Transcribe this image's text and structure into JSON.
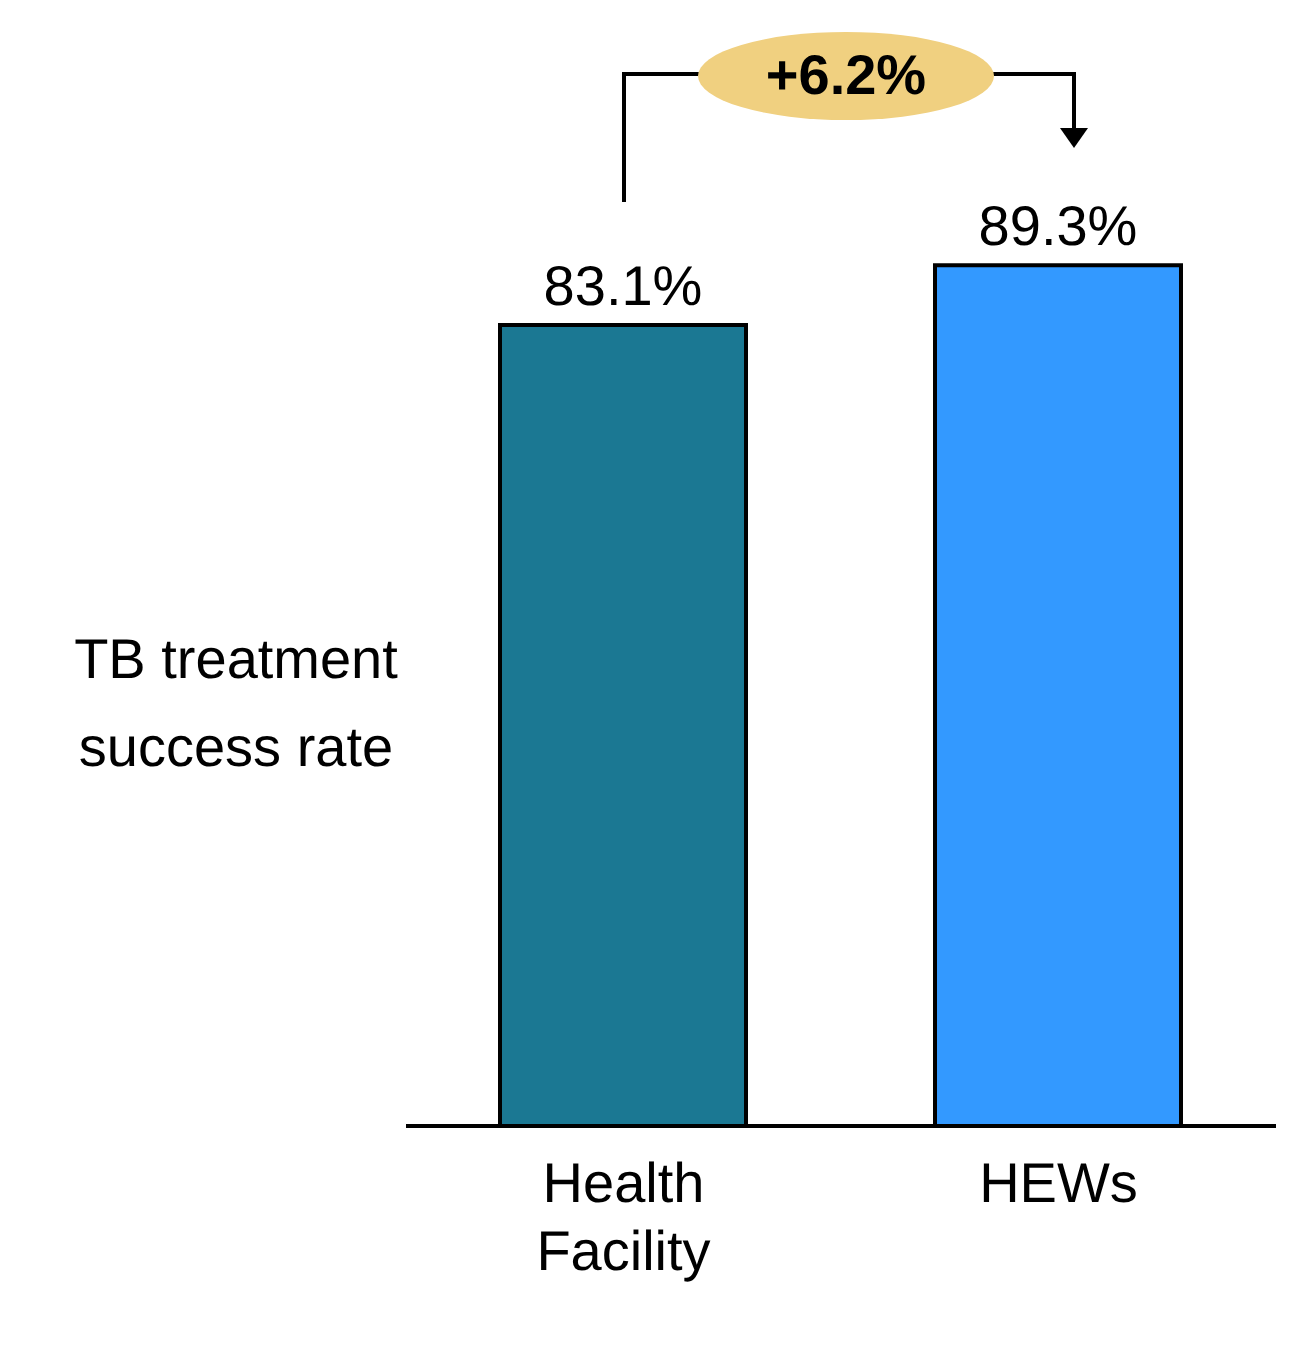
{
  "chart_data": {
    "type": "bar",
    "ylabel": "TB treatment success rate",
    "categories": [
      "Health Facility",
      "HEWs"
    ],
    "values": [
      83.1,
      89.3
    ],
    "colors": [
      "#1b7893",
      "#3399ff"
    ],
    "value_labels": [
      "83.1%",
      "89.3%"
    ],
    "annotations": [
      "+6.2%"
    ],
    "grid": false,
    "legend": false
  }
}
